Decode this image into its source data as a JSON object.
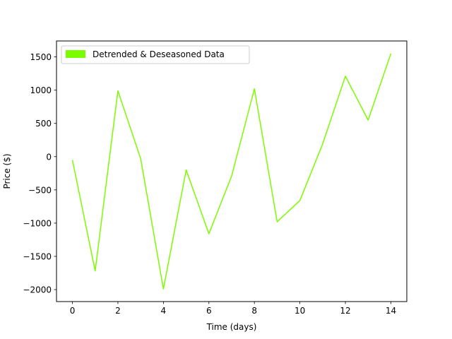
{
  "chart_data": {
    "type": "line",
    "title": "",
    "xlabel": "Time (days)",
    "ylabel": "Price ($)",
    "xlim": [
      -0.7,
      14.7
    ],
    "ylim": [
      -2180,
      1740
    ],
    "xticks": [
      0,
      2,
      4,
      6,
      8,
      10,
      12,
      14
    ],
    "xtick_labels": [
      "0",
      "2",
      "4",
      "6",
      "8",
      "10",
      "12",
      "14"
    ],
    "yticks": [
      -2000,
      -1500,
      -1000,
      -500,
      0,
      500,
      1000,
      1500
    ],
    "ytick_labels": [
      "−2000",
      "−1500",
      "−1000",
      "−500",
      "0",
      "500",
      "1000",
      "1500"
    ],
    "grid": false,
    "legend_position": "top-left",
    "series": [
      {
        "name": "Detrended & Deseasoned Data",
        "color": "#7cfc00",
        "x": [
          0,
          1,
          2,
          3,
          4,
          5,
          6,
          7,
          8,
          9,
          10,
          11,
          12,
          13,
          14
        ],
        "y": [
          -50,
          -1720,
          990,
          -30,
          -1990,
          -200,
          -1160,
          -290,
          1020,
          -980,
          -660,
          190,
          1210,
          550,
          1550
        ]
      }
    ]
  }
}
